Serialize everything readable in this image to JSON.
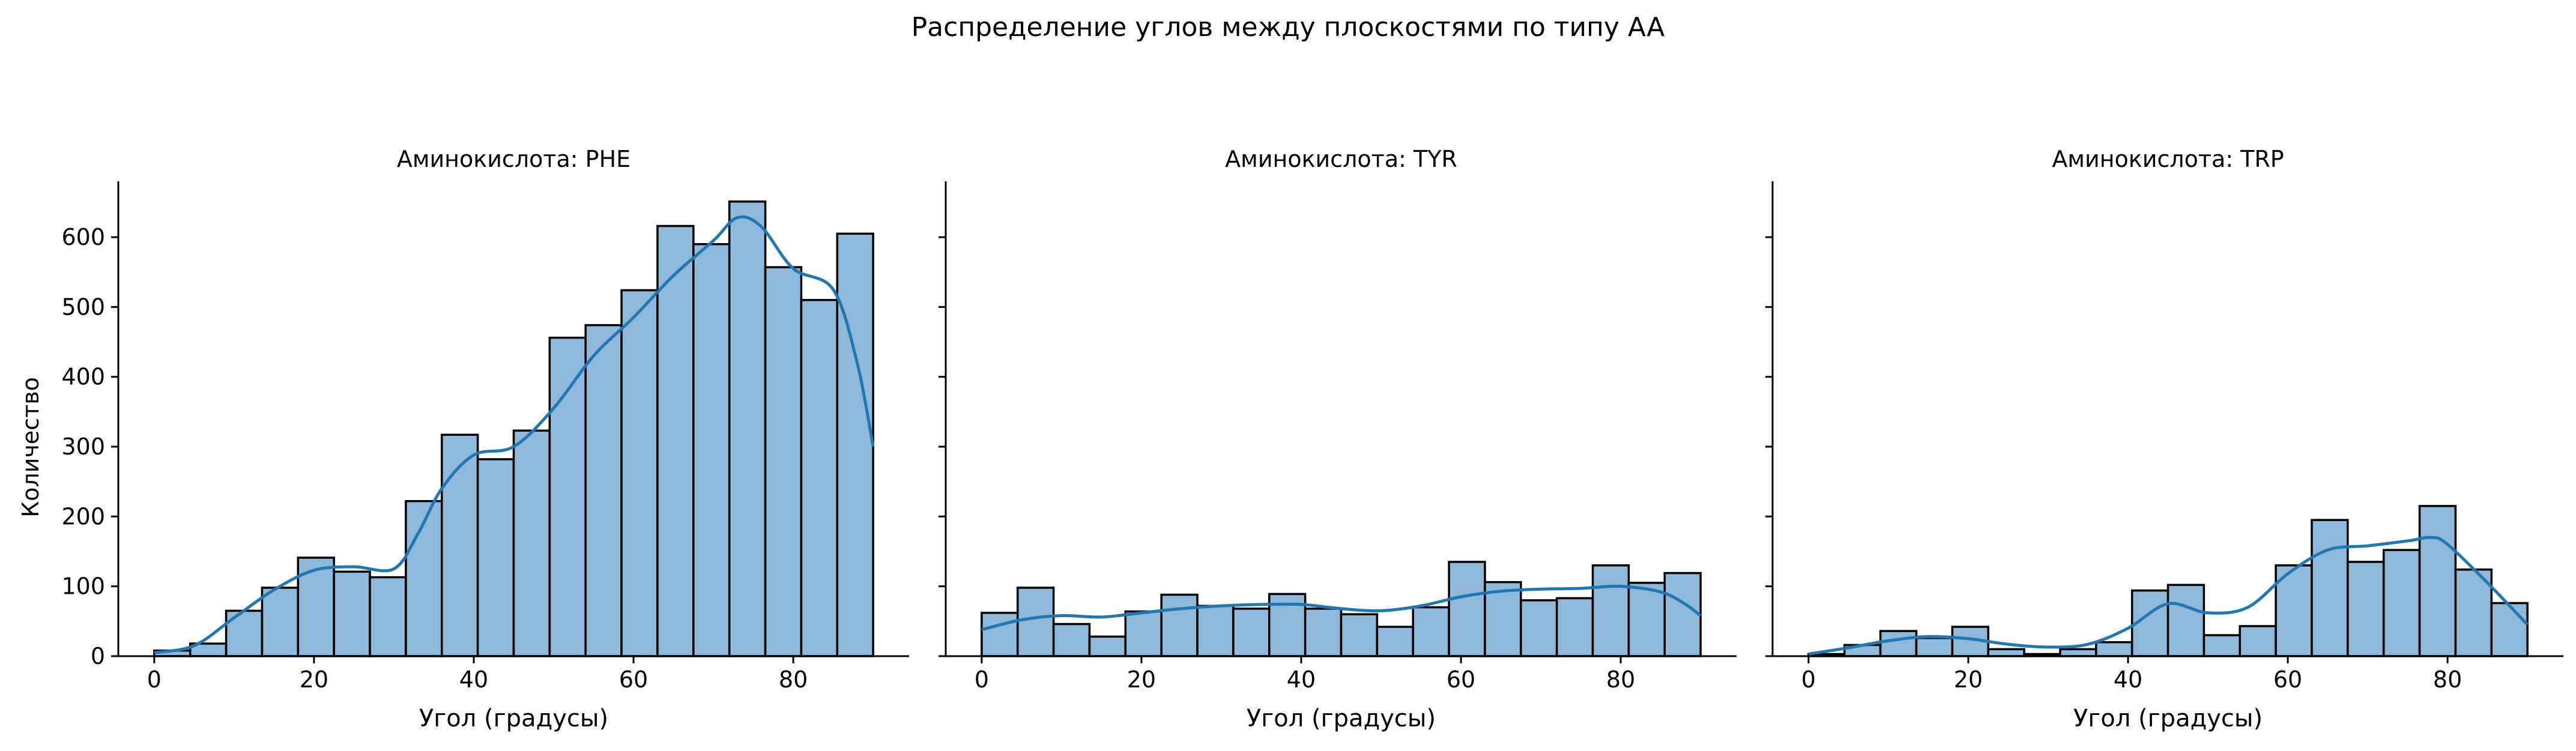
{
  "figure": {
    "title": "Распределение углов между плоскостями по типу AA",
    "ylabel": "Количество"
  },
  "colors": {
    "bar_fill": "#8fb9da",
    "bar_edge": "#000000",
    "kde_line": "#1f77b4",
    "axis": "#000000"
  },
  "chart_data": [
    {
      "type": "bar",
      "variant": "histogram_with_kde",
      "title": "Аминокислота: PHE",
      "xlabel": "Угол (градусы)",
      "ylabel": "Количество",
      "xlim": [
        -4.5,
        94.5
      ],
      "ylim": [
        0,
        680
      ],
      "xticks": [
        0,
        20,
        40,
        60,
        80
      ],
      "yticks": [
        0,
        100,
        200,
        300,
        400,
        500,
        600
      ],
      "bin_edges": [
        0,
        4.5,
        9,
        13.5,
        18,
        22.5,
        27,
        31.5,
        36,
        40.5,
        45,
        49.5,
        54,
        58.5,
        63,
        67.5,
        72,
        76.5,
        81,
        85.5,
        90
      ],
      "values": [
        8,
        18,
        65,
        98,
        141,
        121,
        113,
        222,
        317,
        282,
        323,
        456,
        474,
        524,
        616,
        590,
        651,
        557,
        510,
        605
      ],
      "kde": {
        "x": [
          0,
          5,
          10,
          15,
          20,
          25,
          30,
          33,
          36,
          40,
          45,
          50,
          55,
          60,
          65,
          70,
          73,
          76,
          80,
          85,
          88,
          90
        ],
        "y": [
          5,
          15,
          55,
          95,
          123,
          128,
          125,
          175,
          240,
          288,
          300,
          355,
          430,
          485,
          545,
          595,
          628,
          615,
          555,
          525,
          420,
          300
        ]
      }
    },
    {
      "type": "bar",
      "variant": "histogram_with_kde",
      "title": "Аминокислота: TYR",
      "xlabel": "Угол (градусы)",
      "ylim": [
        0,
        680
      ],
      "xlim": [
        -4.5,
        94.5
      ],
      "xticks": [
        0,
        20,
        40,
        60,
        80
      ],
      "yticks": [
        0,
        100,
        200,
        300,
        400,
        500,
        600
      ],
      "shared_y": true,
      "bin_edges": [
        0,
        4.5,
        9,
        13.5,
        18,
        22.5,
        27,
        31.5,
        36,
        40.5,
        45,
        49.5,
        54,
        58.5,
        63,
        67.5,
        72,
        76.5,
        81,
        85.5,
        90
      ],
      "values": [
        62,
        98,
        46,
        28,
        64,
        88,
        72,
        68,
        89,
        68,
        60,
        42,
        70,
        135,
        106,
        80,
        83,
        130,
        105,
        119
      ],
      "kde": {
        "x": [
          0,
          5,
          10,
          15,
          20,
          25,
          30,
          35,
          40,
          45,
          50,
          55,
          60,
          65,
          70,
          75,
          80,
          85,
          88,
          90
        ],
        "y": [
          38,
          52,
          58,
          56,
          62,
          68,
          72,
          74,
          74,
          68,
          65,
          72,
          85,
          93,
          96,
          97,
          100,
          92,
          75,
          58
        ]
      }
    },
    {
      "type": "bar",
      "variant": "histogram_with_kde",
      "title": "Аминокислота: TRP",
      "xlabel": "Угол (градусы)",
      "ylim": [
        0,
        680
      ],
      "xlim": [
        -4.5,
        94.5
      ],
      "xticks": [
        0,
        20,
        40,
        60,
        80
      ],
      "yticks": [
        0,
        100,
        200,
        300,
        400,
        500,
        600
      ],
      "shared_y": true,
      "bin_edges": [
        0,
        4.5,
        9,
        13.5,
        18,
        22.5,
        27,
        31.5,
        36,
        40.5,
        45,
        49.5,
        54,
        58.5,
        63,
        67.5,
        72,
        76.5,
        81,
        85.5,
        90
      ],
      "values": [
        3,
        16,
        36,
        26,
        42,
        10,
        3,
        10,
        20,
        94,
        102,
        30,
        43,
        130,
        195,
        135,
        152,
        215,
        124,
        76
      ],
      "kde": {
        "x": [
          0,
          5,
          10,
          15,
          20,
          25,
          30,
          35,
          40,
          45,
          50,
          55,
          60,
          65,
          70,
          75,
          78,
          80,
          85,
          90
        ],
        "y": [
          3,
          12,
          22,
          28,
          25,
          17,
          13,
          17,
          40,
          75,
          62,
          70,
          118,
          152,
          158,
          165,
          170,
          160,
          105,
          45
        ]
      }
    }
  ]
}
